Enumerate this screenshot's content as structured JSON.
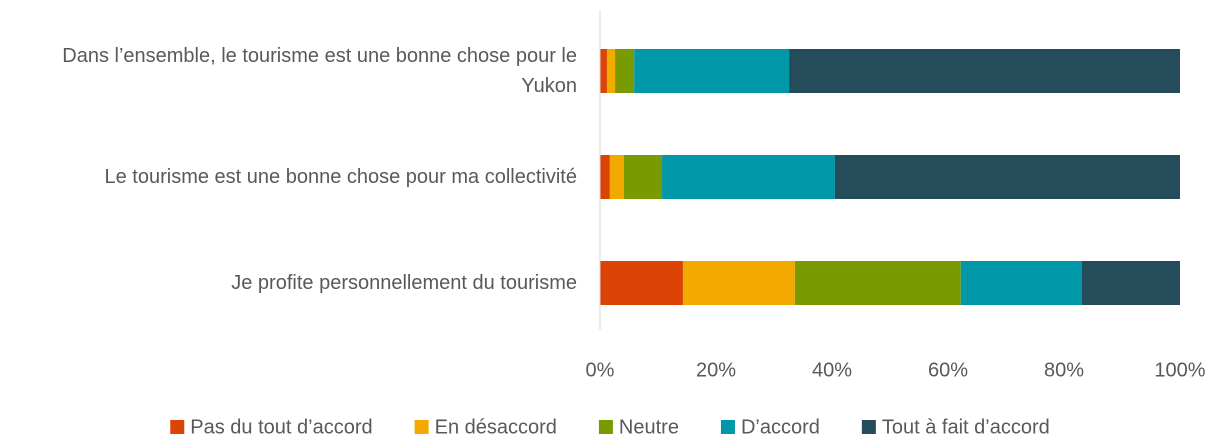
{
  "chart_data": {
    "type": "stacked_bar_horizontal",
    "categories": [
      "Dans l’ensemble, le tourisme est une bonne chose pour le Yukon",
      "Le tourisme est une bonne chose pour ma collectivité",
      "Je profite personnellement du tourisme"
    ],
    "series": [
      {
        "name": "Pas du tout d’accord",
        "color": "#dc4405",
        "values": [
          1.2,
          1.7,
          14.3
        ]
      },
      {
        "name": "En désaccord",
        "color": "#f2a900",
        "values": [
          1.4,
          2.4,
          19.3
        ]
      },
      {
        "name": "Neutre",
        "color": "#7a9a01",
        "values": [
          3.3,
          6.6,
          28.6
        ]
      },
      {
        "name": "D’accord",
        "color": "#0097a9",
        "values": [
          26.7,
          29.8,
          20.9
        ]
      },
      {
        "name": "Tout à fait d’accord",
        "color": "#244c5a",
        "values": [
          67.4,
          59.5,
          16.9
        ]
      }
    ],
    "xlim": [
      0,
      100
    ],
    "xticks": [
      {
        "value": 0,
        "label": "0%"
      },
      {
        "value": 20,
        "label": "20%"
      },
      {
        "value": 40,
        "label": "40%"
      },
      {
        "value": 60,
        "label": "60%"
      },
      {
        "value": 80,
        "label": "80%"
      },
      {
        "value": 100,
        "label": "100%"
      }
    ],
    "grid": false,
    "legend": "bottom"
  }
}
